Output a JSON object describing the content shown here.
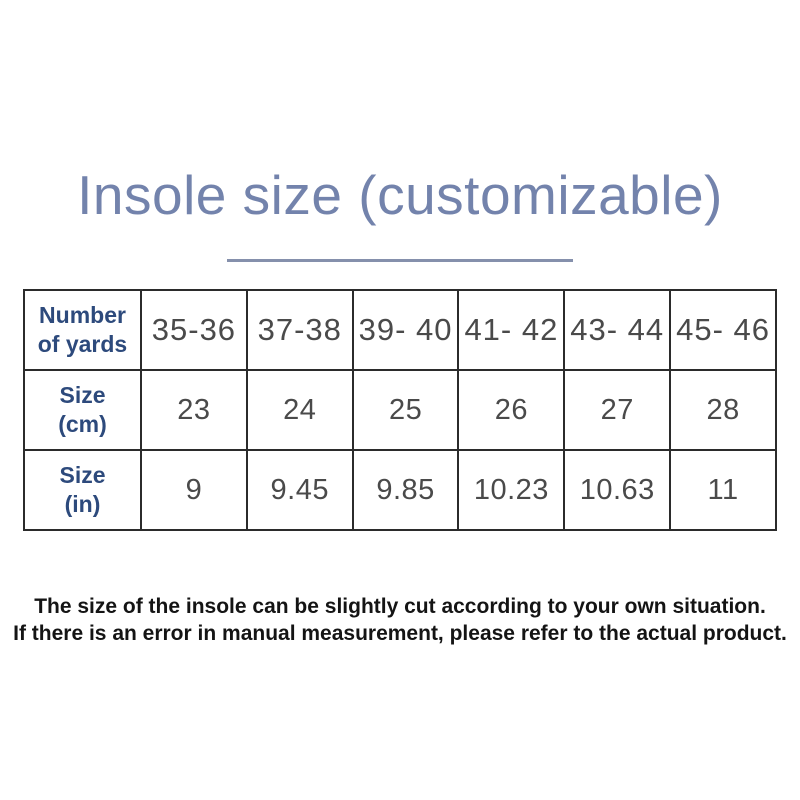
{
  "title": "Insole size (customizable)",
  "table": {
    "row_header_lines": [
      [
        "Number",
        "of yards"
      ],
      [
        "Size",
        "(cm)"
      ],
      [
        "Size",
        "(in)"
      ]
    ],
    "rows": [
      {
        "label": "Number of yards",
        "values": [
          "35-36",
          "37-38",
          "39- 40",
          "41- 42",
          "43- 44",
          "45- 46"
        ]
      },
      {
        "label": "Size (cm)",
        "values": [
          "23",
          "24",
          "25",
          "26",
          "27",
          "28"
        ]
      },
      {
        "label": "Size (in)",
        "values": [
          "9",
          "9.45",
          "9.85",
          "10.23",
          "10.63",
          "11"
        ]
      }
    ]
  },
  "footer": {
    "line1": "The size of the insole can be slightly cut according to your own situation.",
    "line2": "If there is an error in manual measurement, please refer to the actual product."
  },
  "colors": {
    "background": "#ffffff",
    "title_text": "#7383ac",
    "divider": "#8590ac",
    "row_label_text": "#2d4a7c",
    "cell_text": "#4a4a4a",
    "table_border": "#2b2b2b",
    "footer_text": "#141414"
  },
  "chart_data": {
    "type": "table",
    "title": "Insole size (customizable)",
    "row_headers": [
      "Number of yards",
      "Size (cm)",
      "Size (in)"
    ],
    "columns": [
      "35-36",
      "37-38",
      "39- 40",
      "41- 42",
      "43- 44",
      "45- 46"
    ],
    "rows": [
      [
        "35-36",
        "37-38",
        "39- 40",
        "41- 42",
        "43- 44",
        "45- 46"
      ],
      [
        23,
        24,
        25,
        26,
        27,
        28
      ],
      [
        9,
        9.45,
        9.85,
        10.23,
        10.63,
        11
      ]
    ],
    "notes": [
      "The size of the insole can be slightly cut according to your own situation.",
      "If there is an error in manual measurement, please refer to the actual product."
    ]
  }
}
